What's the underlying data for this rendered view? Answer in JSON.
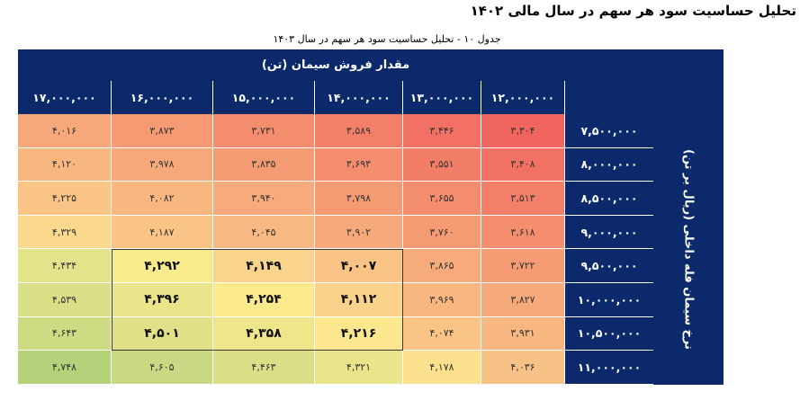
{
  "doc_title": "تحلیل حساسیت سود هر سهم در سال مالی ۱۴۰۲",
  "table_caption": "جدول ۱۰ - تحلیل حساسیت سود هر سهم در سال ۱۴۰۳",
  "sales_axis_title": "مقدار فروش سیمان (تن)",
  "price_axis_title": "نرخ سیمان فله داخلی (ریال بر تن)",
  "columns": [
    "۱۷,۰۰۰,۰۰۰",
    "۱۶,۰۰۰,۰۰۰",
    "۱۵,۰۰۰,۰۰۰",
    "۱۴,۰۰۰,۰۰۰",
    "۱۳,۰۰۰,۰۰۰",
    "۱۲,۰۰۰,۰۰۰"
  ],
  "rows": [
    {
      "label": "۷,۵۰۰,۰۰۰",
      "values": [
        "۴,۰۱۶",
        "۳,۸۷۳",
        "۳,۷۳۱",
        "۳,۵۸۹",
        "۳,۴۴۶",
        "۳,۳۰۴"
      ]
    },
    {
      "label": "۸,۰۰۰,۰۰۰",
      "values": [
        "۴,۱۲۰",
        "۳,۹۷۸",
        "۳,۸۳۵",
        "۳,۶۹۳",
        "۳,۵۵۱",
        "۳,۴۰۸"
      ]
    },
    {
      "label": "۸,۵۰۰,۰۰۰",
      "values": [
        "۴,۲۲۵",
        "۴,۰۸۲",
        "۳,۹۴۰",
        "۳,۷۹۸",
        "۳,۶۵۵",
        "۳,۵۱۳"
      ]
    },
    {
      "label": "۹,۰۰۰,۰۰۰",
      "values": [
        "۴,۳۲۹",
        "۴,۱۸۷",
        "۴,۰۴۵",
        "۳,۹۰۲",
        "۳,۷۶۰",
        "۳,۶۱۸"
      ]
    },
    {
      "label": "۹,۵۰۰,۰۰۰",
      "values": [
        "۴,۴۳۴",
        "۴,۲۹۲",
        "۴,۱۴۹",
        "۴,۰۰۷",
        "۳,۸۶۵",
        "۳,۷۲۲"
      ]
    },
    {
      "label": "۱۰,۰۰۰,۰۰۰",
      "values": [
        "۴,۵۳۹",
        "۴,۳۹۶",
        "۴,۲۵۴",
        "۴,۱۱۲",
        "۳,۹۶۹",
        "۳,۸۲۷"
      ]
    },
    {
      "label": "۱۰,۵۰۰,۰۰۰",
      "values": [
        "۴,۶۴۳",
        "۴,۵۰۱",
        "۴,۳۵۸",
        "۴,۲۱۶",
        "۴,۰۷۴",
        "۳,۹۳۱"
      ]
    },
    {
      "label": "۱۱,۰۰۰,۰۰۰",
      "values": [
        "۴,۷۴۸",
        "۴,۶۰۵",
        "۴,۴۶۳",
        "۴,۳۲۱",
        "۴,۱۷۸",
        "۴,۰۳۶"
      ]
    }
  ],
  "cell_colors": [
    [
      "#f6a87a",
      "#f59a73",
      "#f48d6e",
      "#f37f69",
      "#f27064",
      "#f0655e"
    ],
    [
      "#f8b681",
      "#f6a87a",
      "#f59b74",
      "#f48d6e",
      "#f37e68",
      "#f17263"
    ],
    [
      "#fac487",
      "#f8b781",
      "#f7aa7b",
      "#f59b74",
      "#f48d6e",
      "#f37f69"
    ],
    [
      "#fcd88e",
      "#fac487",
      "#f8b881",
      "#f6a97b",
      "#f59b74",
      "#f48e6e"
    ],
    [
      "#e4e28a",
      "#f9ea8c",
      "#fad48d",
      "#fac487",
      "#f7aa7b",
      "#f59c74"
    ],
    [
      "#d9df86",
      "#eae58b",
      "#fbeb8d",
      "#fbd28c",
      "#f8b681",
      "#f6a97b"
    ],
    [
      "#cfdb83",
      "#dfe088",
      "#efe68c",
      "#fce68e",
      "#fac486",
      "#f8b680"
    ],
    [
      "#b4d27a",
      "#c9d983",
      "#dadf87",
      "#eae58b",
      "#fce08e",
      "#f8c185"
    ]
  ],
  "highlight": {
    "rows": [
      4,
      5,
      6
    ],
    "cols": [
      1,
      2,
      3
    ]
  }
}
